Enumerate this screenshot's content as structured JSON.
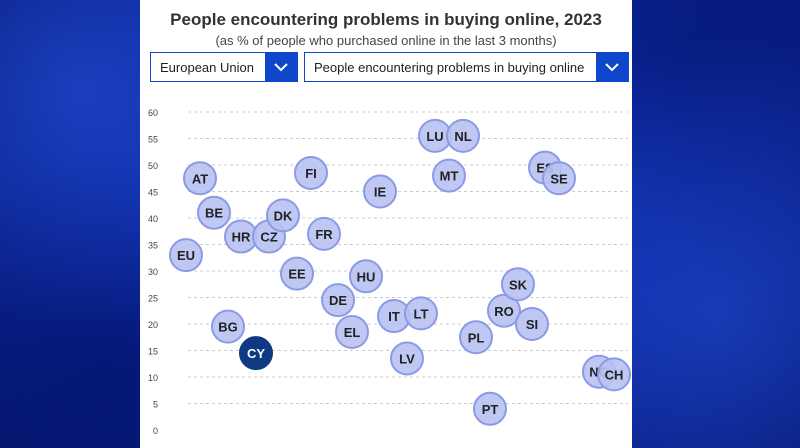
{
  "header": {
    "title": "People encountering problems in buying online, 2023",
    "subtitle": "(as % of people who purchased online in the last 3 months)"
  },
  "filters": {
    "geo_label": "European Union",
    "indicator_label": "People encountering problems in buying online"
  },
  "colors": {
    "bubble_fill": "#b8c2f2",
    "bubble_border": "#8c9ae6",
    "highlight_fill": "#0e3a84",
    "accent": "#0e47cb"
  },
  "chart_data": {
    "type": "scatter",
    "title": "People encountering problems in buying online, 2023",
    "subtitle": "(as % of people who purchased online in the last 3 months)",
    "ylim": [
      0,
      60
    ],
    "yticks": [
      0,
      5,
      10,
      15,
      20,
      25,
      30,
      35,
      40,
      45,
      50,
      55,
      60
    ],
    "grid": true,
    "highlighted": "CY",
    "points": [
      {
        "label": "EU",
        "value": 33
      },
      {
        "label": "AT",
        "value": 47.5
      },
      {
        "label": "BE",
        "value": 41
      },
      {
        "label": "BG",
        "value": 19.5
      },
      {
        "label": "CY",
        "value": 14.5
      },
      {
        "label": "HR",
        "value": 36.5
      },
      {
        "label": "CZ",
        "value": 36.5
      },
      {
        "label": "DK",
        "value": 40.5
      },
      {
        "label": "EE",
        "value": 29.5
      },
      {
        "label": "FI",
        "value": 48.5
      },
      {
        "label": "FR",
        "value": 37
      },
      {
        "label": "DE",
        "value": 24.5
      },
      {
        "label": "EL",
        "value": 18.5
      },
      {
        "label": "HU",
        "value": 29
      },
      {
        "label": "IE",
        "value": 45
      },
      {
        "label": "IT",
        "value": 21.5
      },
      {
        "label": "LT",
        "value": 22
      },
      {
        "label": "LV",
        "value": 13.5
      },
      {
        "label": "LU",
        "value": 55.5
      },
      {
        "label": "NL",
        "value": 55.5
      },
      {
        "label": "MT",
        "value": 48
      },
      {
        "label": "PL",
        "value": 17.5
      },
      {
        "label": "PT",
        "value": 4
      },
      {
        "label": "RO",
        "value": 22.5
      },
      {
        "label": "SK",
        "value": 27.5
      },
      {
        "label": "SI",
        "value": 20
      },
      {
        "label": "ES",
        "value": 49.5
      },
      {
        "label": "SE",
        "value": 47.5
      },
      {
        "label": "NO",
        "value": 11
      },
      {
        "label": "CH",
        "value": 10.5
      }
    ]
  }
}
